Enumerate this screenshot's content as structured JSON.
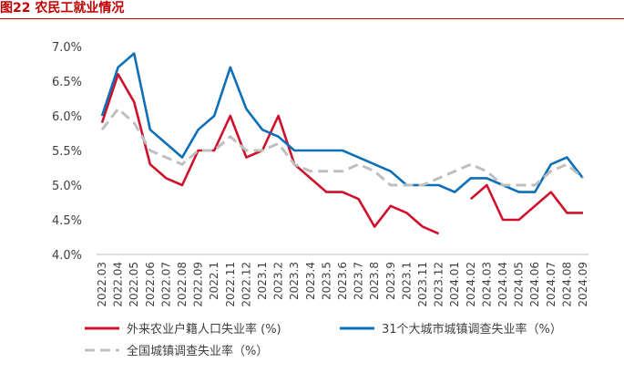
{
  "figure": {
    "title": "图22  农民工就业情况"
  },
  "chart_data": {
    "type": "line",
    "title": "图22  农民工就业情况",
    "xlabel": "",
    "ylabel": "",
    "ylim": [
      4.0,
      7.0
    ],
    "yticks": [
      "7.0%",
      "6.5%",
      "6.0%",
      "5.5%",
      "5.0%",
      "4.5%",
      "4.0%"
    ],
    "ytick_values": [
      7.0,
      6.5,
      6.0,
      5.5,
      5.0,
      4.5,
      4.0
    ],
    "grid": false,
    "categories": [
      "2022.03",
      "2022.04",
      "2022.05",
      "2022.06",
      "2022.07",
      "2022.08",
      "2022.09",
      "2022.1",
      "2022.11",
      "2022.12",
      "2023.1",
      "2023.2",
      "2023.3",
      "2023.4",
      "2023.5",
      "2023.6",
      "2023.7",
      "2023.8",
      "2023.9",
      "2023.10",
      "2023.11",
      "2023.12",
      "2024.01",
      "2024.02",
      "2024.03",
      "2024.04",
      "2024.05",
      "2024.06",
      "2024.07",
      "2024.08",
      "2024.09"
    ],
    "visible_tick_labels": [
      "2022.03",
      "2022.04",
      "2022.05",
      "2022.06",
      "2022.07",
      "2022.08",
      "2022.09",
      "2022.1",
      "2022.11",
      "2022.12",
      "2023.1",
      "2023.2",
      "2023.3",
      "2023.4",
      "2023.5",
      "2023.6",
      "2023.7",
      "2023.8",
      "2023.9",
      "2023.1",
      "2023.11",
      "2023.12",
      "2024.01",
      "2024.02",
      "2024.03",
      "2024.04",
      "2024.05",
      "2024.06",
      "2024.07",
      "2024.08",
      "2024.09"
    ],
    "legend_position": "bottom",
    "series": [
      {
        "name": "外来农业户籍人口失业率 (%)",
        "color": "#d0102a",
        "dash": "solid",
        "values": [
          5.9,
          6.6,
          6.2,
          5.3,
          5.1,
          5.0,
          5.5,
          5.5,
          6.0,
          5.4,
          5.5,
          6.0,
          5.3,
          5.1,
          4.9,
          4.9,
          4.8,
          4.4,
          4.7,
          4.6,
          4.4,
          4.3,
          null,
          4.8,
          5.0,
          4.5,
          4.5,
          4.7,
          4.9,
          4.6,
          4.6
        ]
      },
      {
        "name": "31个大城市城镇调查失业率（%）",
        "color": "#0d6fb8",
        "dash": "solid",
        "values": [
          6.0,
          6.7,
          6.9,
          5.8,
          5.6,
          5.4,
          5.8,
          6.0,
          6.7,
          6.1,
          5.8,
          5.7,
          5.5,
          5.5,
          5.5,
          5.5,
          5.4,
          5.3,
          5.2,
          5.0,
          5.0,
          5.0,
          4.9,
          5.1,
          5.1,
          5.0,
          4.9,
          4.9,
          5.3,
          5.4,
          5.1
        ]
      },
      {
        "name": "全国城镇调查失业率（%）",
        "color": "#bfbfbf",
        "dash": "dashed",
        "values": [
          5.8,
          6.1,
          5.9,
          5.5,
          5.4,
          5.3,
          5.5,
          5.5,
          5.7,
          5.5,
          5.5,
          5.6,
          5.3,
          5.2,
          5.2,
          5.2,
          5.3,
          5.2,
          5.0,
          5.0,
          5.0,
          5.1,
          5.2,
          5.3,
          5.2,
          5.0,
          5.0,
          5.0,
          5.2,
          5.3,
          5.1
        ]
      }
    ]
  }
}
